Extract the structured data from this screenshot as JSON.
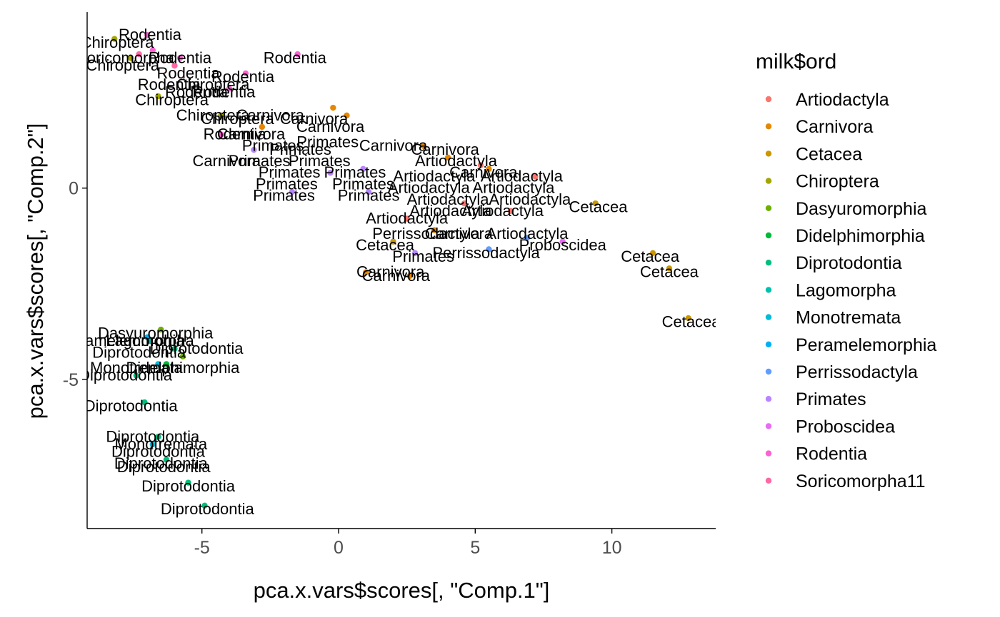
{
  "chart_data": {
    "type": "scatter",
    "xlabel": "pca.x.vars$scores[, \"Comp.1\"]",
    "ylabel": "pca.x.vars$scores[, \"Comp.2\"]",
    "xlim": [
      -9.2,
      13.8
    ],
    "ylim": [
      -8.9,
      4.6
    ],
    "x_ticks": [
      -5,
      0,
      5,
      10
    ],
    "y_ticks": [
      -5,
      0
    ],
    "grid": false,
    "legend": {
      "title": "milk$ord",
      "placement": "right"
    },
    "series": [
      {
        "name": "Artiodactyla",
        "color": "#F8766D",
        "points": [
          [
            2.5,
            -0.8
          ],
          [
            5.2,
            0.6
          ],
          [
            6.3,
            -0.6
          ],
          [
            7.2,
            0.3
          ],
          [
            4.6,
            -0.4
          ]
        ]
      },
      {
        "name": "Carnivora",
        "color": "#E58700",
        "points": [
          [
            -2.8,
            1.6
          ],
          [
            -0.2,
            2.1
          ],
          [
            0.3,
            1.9
          ],
          [
            3.1,
            1.1
          ],
          [
            4.0,
            0.8
          ],
          [
            5.5,
            0.5
          ],
          [
            1.0,
            -2.2
          ],
          [
            2.6,
            -2.3
          ],
          [
            3.5,
            -1.1
          ]
        ]
      },
      {
        "name": "Cetacea",
        "color": "#C99800",
        "points": [
          [
            9.4,
            -0.4
          ],
          [
            11.5,
            -1.7
          ],
          [
            12.1,
            -2.1
          ],
          [
            12.8,
            -3.4
          ],
          [
            2.0,
            -1.4
          ]
        ]
      },
      {
        "name": "Chiroptera",
        "color": "#A3A500",
        "points": [
          [
            -8.2,
            3.9
          ],
          [
            -7.6,
            3.4
          ],
          [
            -6.6,
            2.4
          ],
          [
            -4.3,
            1.9
          ]
        ]
      },
      {
        "name": "Dasyuromorphia",
        "color": "#6BB100",
        "points": [
          [
            -6.5,
            -3.7
          ],
          [
            -5.7,
            -4.4
          ]
        ]
      },
      {
        "name": "Didelphimorphia",
        "color": "#00BA38",
        "points": [
          [
            -6.3,
            -4.6
          ]
        ]
      },
      {
        "name": "Diprotodontia",
        "color": "#00BF7D",
        "points": [
          [
            -7.4,
            -4.9
          ],
          [
            -7.1,
            -5.6
          ],
          [
            -6.6,
            -6.5
          ],
          [
            -6.3,
            -7.1
          ],
          [
            -5.5,
            -7.7
          ],
          [
            -4.9,
            -8.3
          ],
          [
            -6.0,
            -4.2
          ]
        ]
      },
      {
        "name": "Lagomorpha",
        "color": "#00C0AF",
        "points": [
          [
            -6.9,
            -4.0
          ]
        ]
      },
      {
        "name": "Monotremata",
        "color": "#00BCD8",
        "points": [
          [
            -6.8,
            -6.7
          ],
          [
            -6.6,
            -4.6
          ]
        ]
      },
      {
        "name": "Peramelemorphia",
        "color": "#00B0F6",
        "points": [
          [
            -7.0,
            -3.9
          ]
        ]
      },
      {
        "name": "Perrissodactyla",
        "color": "#619CFF",
        "points": [
          [
            5.5,
            -1.6
          ],
          [
            6.9,
            -1.3
          ]
        ]
      },
      {
        "name": "Primates",
        "color": "#B983FF",
        "points": [
          [
            -1.7,
            -0.1
          ],
          [
            -0.3,
            0.4
          ],
          [
            1.1,
            -0.1
          ],
          [
            2.8,
            -1.7
          ],
          [
            -3.1,
            1.0
          ],
          [
            0.9,
            0.5
          ]
        ]
      },
      {
        "name": "Proboscidea",
        "color": "#E76BF3",
        "points": [
          [
            8.2,
            -1.4
          ]
        ]
      },
      {
        "name": "Rodentia",
        "color": "#FD61D1",
        "points": [
          [
            -7.0,
            4.0
          ],
          [
            -1.5,
            3.5
          ],
          [
            -3.4,
            3.0
          ],
          [
            -5.8,
            3.4
          ],
          [
            -4.0,
            2.6
          ],
          [
            -6.8,
            3.6
          ],
          [
            -4.3,
            1.4
          ]
        ]
      },
      {
        "name": "Soricomorpha11",
        "color": "#FF67A4",
        "points": [
          [
            -7.3,
            3.5
          ],
          [
            -6.0,
            3.2
          ]
        ]
      }
    ],
    "labels": [
      {
        "t": "Rodentia",
        "x": -6.9,
        "y": 4.0
      },
      {
        "t": "Chiroptera",
        "x": -8.1,
        "y": 3.8
      },
      {
        "t": "Soricomorpha",
        "x": -7.8,
        "y": 3.4
      },
      {
        "t": "Rodentia",
        "x": -5.8,
        "y": 3.4
      },
      {
        "t": "Chiroptera",
        "x": -7.9,
        "y": 3.2
      },
      {
        "t": "Rodentia",
        "x": -1.6,
        "y": 3.4
      },
      {
        "t": "Rodentia",
        "x": -5.5,
        "y": 3.0
      },
      {
        "t": "Rodentia",
        "x": -3.5,
        "y": 2.9
      },
      {
        "t": "Rodentia",
        "x": -6.2,
        "y": 2.7
      },
      {
        "t": "Chiroptera",
        "x": -4.6,
        "y": 2.7
      },
      {
        "t": "Rodentia",
        "x": -5.2,
        "y": 2.5
      },
      {
        "t": "Rodentia",
        "x": -4.2,
        "y": 2.5
      },
      {
        "t": "Chiroptera",
        "x": -6.1,
        "y": 2.3
      },
      {
        "t": "Chiroptera",
        "x": -4.6,
        "y": 1.9
      },
      {
        "t": "Carnivora",
        "x": -2.5,
        "y": 1.9
      },
      {
        "t": "Carnivora",
        "x": -0.9,
        "y": 1.8
      },
      {
        "t": "Chiroptera",
        "x": -3.7,
        "y": 1.8
      },
      {
        "t": "Carnivora",
        "x": -0.3,
        "y": 1.6
      },
      {
        "t": "Rodentia",
        "x": -3.8,
        "y": 1.4
      },
      {
        "t": "Carnivora",
        "x": -3.2,
        "y": 1.4
      },
      {
        "t": "Primates",
        "x": -0.4,
        "y": 1.2
      },
      {
        "t": "Primates",
        "x": -2.4,
        "y": 1.1
      },
      {
        "t": "Carnivora",
        "x": 2.0,
        "y": 1.1
      },
      {
        "t": "Primates",
        "x": -1.4,
        "y": 1.0
      },
      {
        "t": "Carnivora",
        "x": 3.9,
        "y": 1.0
      },
      {
        "t": "Primates",
        "x": -2.9,
        "y": 0.7
      },
      {
        "t": "Carnivora",
        "x": -4.1,
        "y": 0.7
      },
      {
        "t": "Primates",
        "x": -0.7,
        "y": 0.7
      },
      {
        "t": "Artiodactyla",
        "x": 4.3,
        "y": 0.7
      },
      {
        "t": "Primates",
        "x": -1.8,
        "y": 0.4
      },
      {
        "t": "Primates",
        "x": 0.6,
        "y": 0.4
      },
      {
        "t": "Carnivora",
        "x": 5.3,
        "y": 0.4
      },
      {
        "t": "Artiodactyla",
        "x": 3.5,
        "y": 0.3
      },
      {
        "t": "Artiodactyla",
        "x": 6.7,
        "y": 0.3
      },
      {
        "t": "Primates",
        "x": -1.9,
        "y": 0.1
      },
      {
        "t": "Primates",
        "x": 0.9,
        "y": 0.1
      },
      {
        "t": "Artiodactyla",
        "x": 3.3,
        "y": 0.0
      },
      {
        "t": "Artiodactyla",
        "x": 6.4,
        "y": 0.0
      },
      {
        "t": "Primates",
        "x": -2.0,
        "y": -0.2
      },
      {
        "t": "Primates",
        "x": 1.1,
        "y": -0.2
      },
      {
        "t": "Artiodactyla",
        "x": 4.0,
        "y": -0.3
      },
      {
        "t": "Artiodactyla",
        "x": 7.0,
        "y": -0.3
      },
      {
        "t": "Artiodactyla",
        "x": 4.1,
        "y": -0.6
      },
      {
        "t": "Cetacea",
        "x": 9.5,
        "y": -0.5
      },
      {
        "t": "Artiodactyla",
        "x": 6.0,
        "y": -0.6
      },
      {
        "t": "Artiodactyla",
        "x": 2.5,
        "y": -0.8
      },
      {
        "t": "Perrissodactyla",
        "x": 3.2,
        "y": -1.2
      },
      {
        "t": "Carnivora",
        "x": 4.4,
        "y": -1.2
      },
      {
        "t": "Artiodactyla",
        "x": 6.9,
        "y": -1.2
      },
      {
        "t": "Cetacea",
        "x": 1.7,
        "y": -1.5
      },
      {
        "t": "Proboscidea",
        "x": 8.2,
        "y": -1.5
      },
      {
        "t": "Primates",
        "x": 3.1,
        "y": -1.8
      },
      {
        "t": "Perrissodactyla",
        "x": 5.4,
        "y": -1.7
      },
      {
        "t": "Cetacea",
        "x": 11.4,
        "y": -1.8
      },
      {
        "t": "Carnivora",
        "x": 1.9,
        "y": -2.2
      },
      {
        "t": "Carnivora",
        "x": 2.1,
        "y": -2.3
      },
      {
        "t": "Cetacea",
        "x": 12.1,
        "y": -2.2
      },
      {
        "t": "Cetacea",
        "x": 12.9,
        "y": -3.5
      },
      {
        "t": "Dasyuromorphia",
        "x": -6.7,
        "y": -3.8
      },
      {
        "t": "Peramelemorphia",
        "x": -7.9,
        "y": -4.0
      },
      {
        "t": "Lagomorpha",
        "x": -6.9,
        "y": -4.0
      },
      {
        "t": "Diprotodontia",
        "x": -5.2,
        "y": -4.2
      },
      {
        "t": "Diprotodontia",
        "x": -7.3,
        "y": -4.3
      },
      {
        "t": "Monotremata",
        "x": -7.4,
        "y": -4.7
      },
      {
        "t": "Didelphimorphia",
        "x": -5.7,
        "y": -4.7
      },
      {
        "t": "Diprotodontia",
        "x": -7.8,
        "y": -4.9
      },
      {
        "t": "Diprotodontia",
        "x": -7.6,
        "y": -5.7
      },
      {
        "t": "Diprotodontia",
        "x": -6.8,
        "y": -6.5
      },
      {
        "t": "Monotremata",
        "x": -6.5,
        "y": -6.7
      },
      {
        "t": "Diprotodontia",
        "x": -6.6,
        "y": -6.9
      },
      {
        "t": "Diprotodontia",
        "x": -6.5,
        "y": -7.2
      },
      {
        "t": "Diprotodontia",
        "x": -6.4,
        "y": -7.3
      },
      {
        "t": "Diprotodontia",
        "x": -5.5,
        "y": -7.8
      },
      {
        "t": "Diprotodontia",
        "x": -4.8,
        "y": -8.4
      }
    ]
  }
}
